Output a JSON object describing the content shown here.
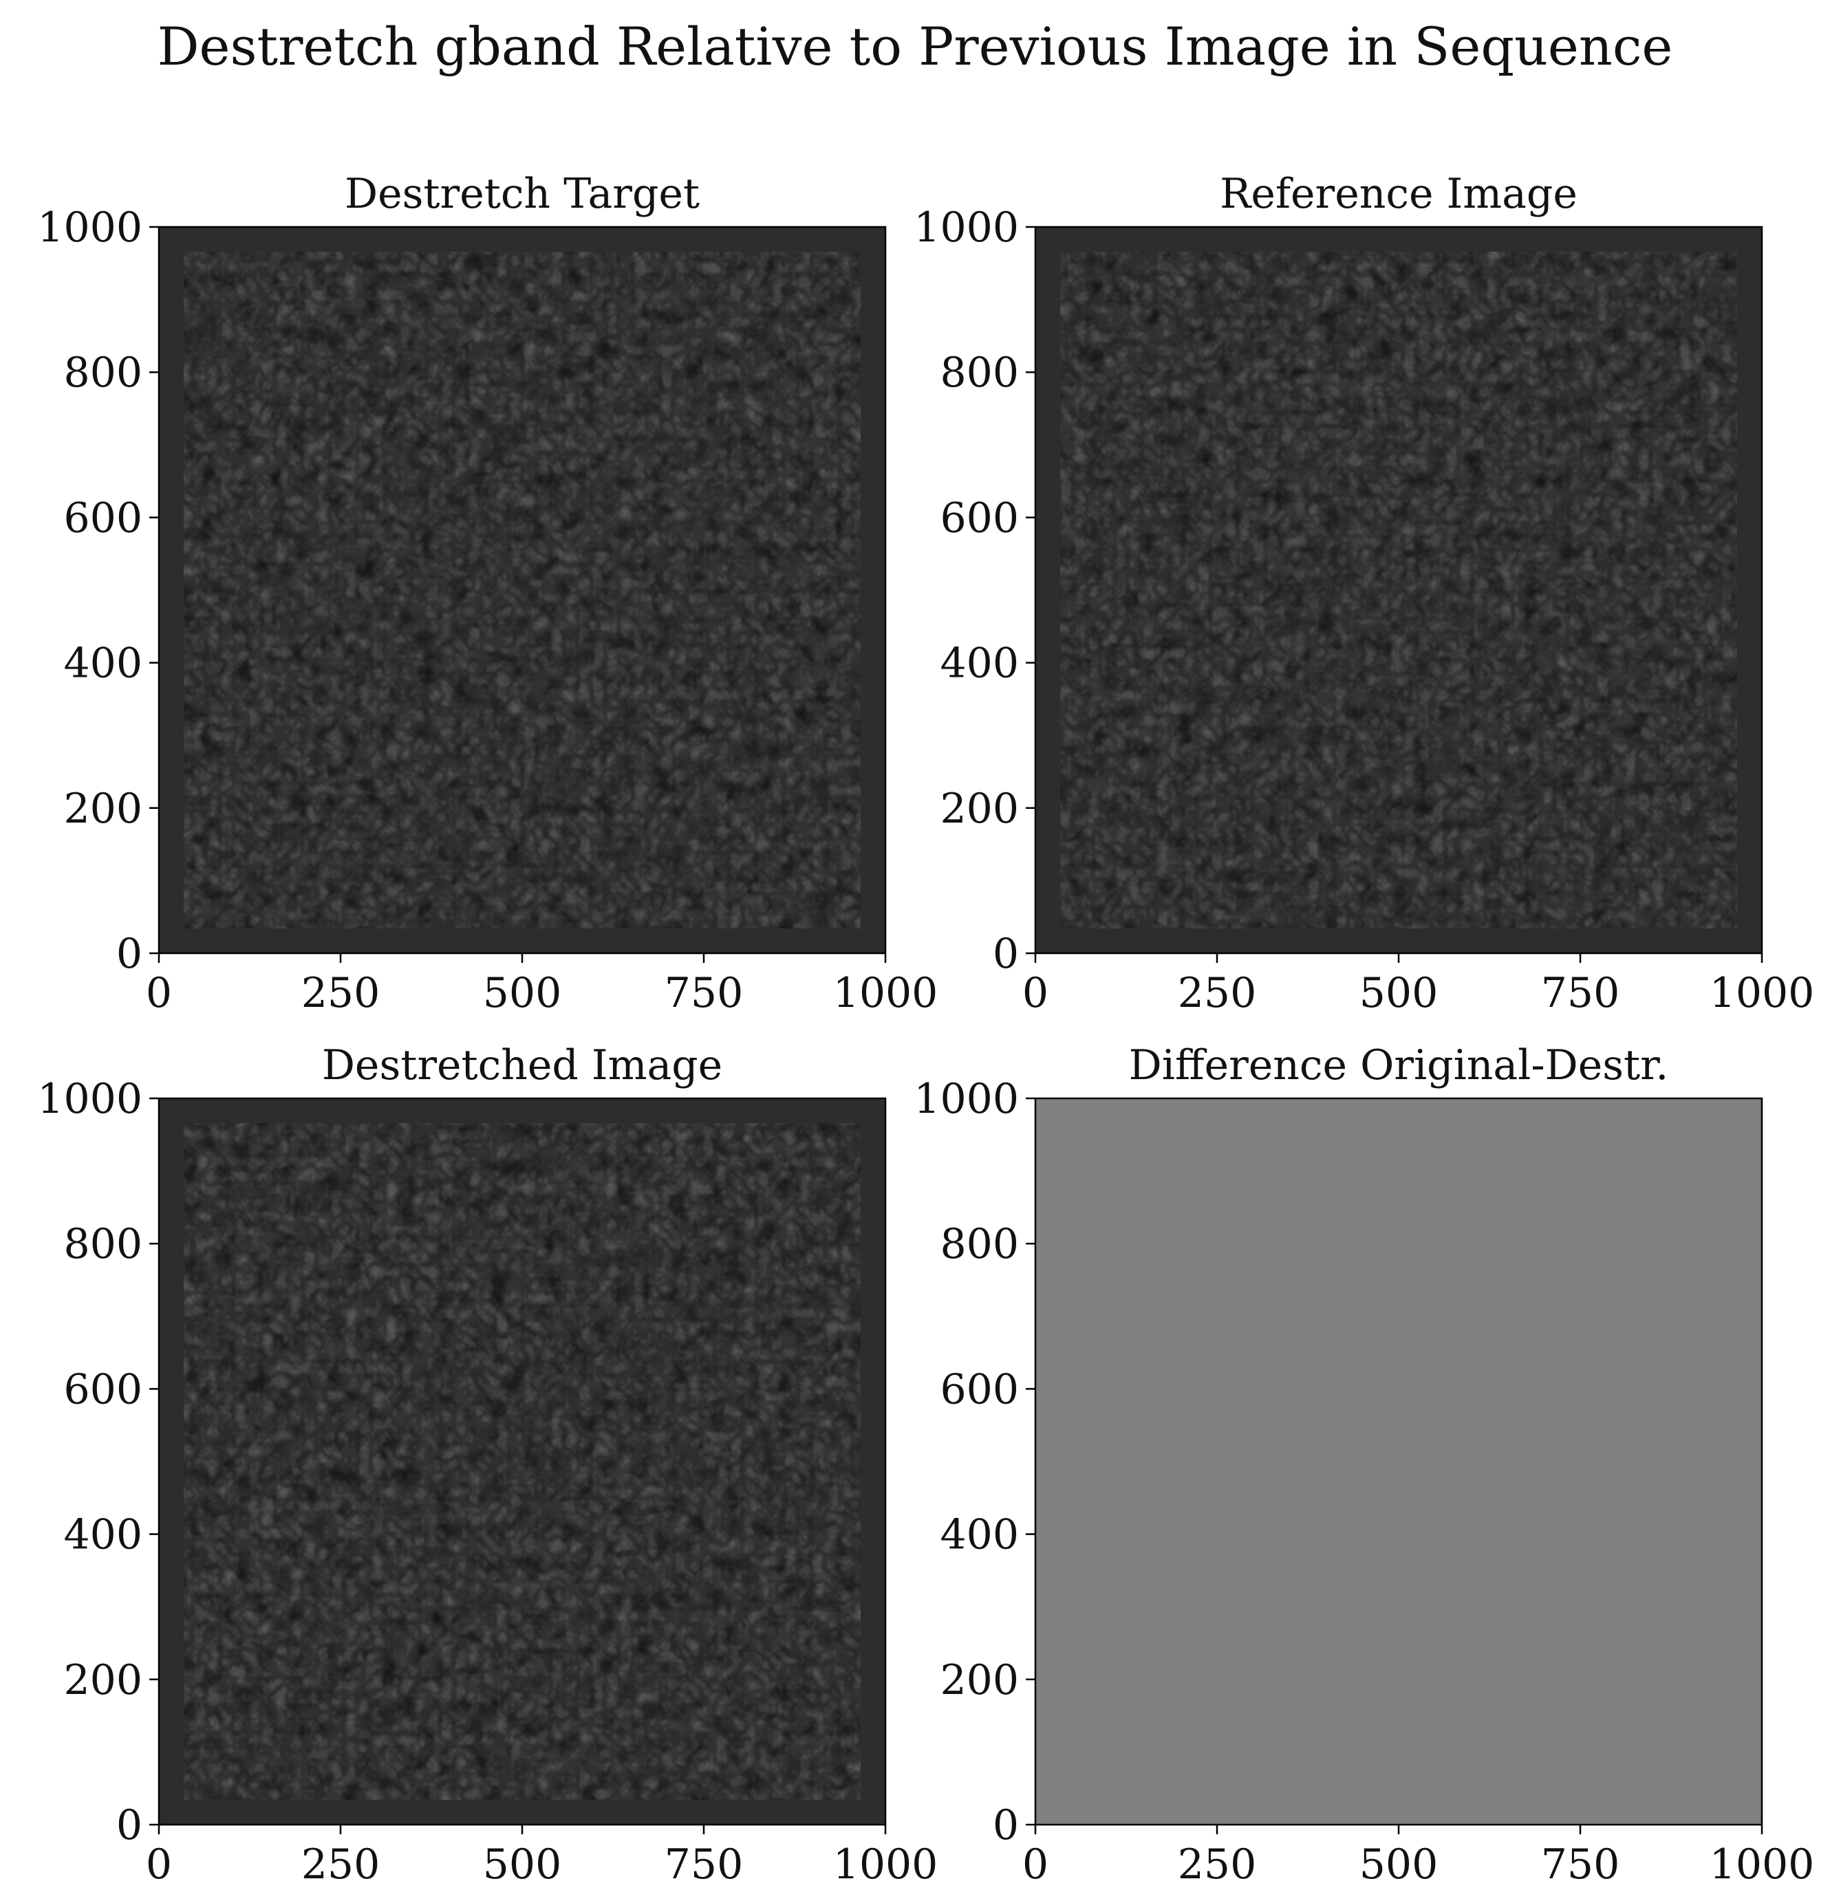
{
  "figure": {
    "suptitle": "Destretch gband Relative to Previous Image in Sequence"
  },
  "chart_data": [
    {
      "type": "heatmap",
      "title": "Destretch Target",
      "colormap": "gray",
      "content": "solar granulation",
      "xlim": [
        0,
        1000
      ],
      "ylim": [
        0,
        1000
      ],
      "xticks": [
        0,
        250,
        500,
        750,
        1000
      ],
      "yticks": [
        0,
        200,
        400,
        600,
        800,
        1000
      ],
      "xlabel": "",
      "ylabel": ""
    },
    {
      "type": "heatmap",
      "title": "Reference Image",
      "colormap": "gray",
      "content": "solar granulation",
      "xlim": [
        0,
        1000
      ],
      "ylim": [
        0,
        1000
      ],
      "xticks": [
        0,
        250,
        500,
        750,
        1000
      ],
      "yticks": [
        0,
        200,
        400,
        600,
        800,
        1000
      ],
      "xlabel": "",
      "ylabel": ""
    },
    {
      "type": "heatmap",
      "title": "Destretched Image",
      "colormap": "gray",
      "content": "solar granulation",
      "xlim": [
        0,
        1000
      ],
      "ylim": [
        0,
        1000
      ],
      "xticks": [
        0,
        250,
        500,
        750,
        1000
      ],
      "yticks": [
        0,
        200,
        400,
        600,
        800,
        1000
      ],
      "xlabel": "",
      "ylabel": ""
    },
    {
      "type": "heatmap",
      "title": "Difference Original-Destr.",
      "colormap": "gray",
      "content": "difference residuals",
      "xlim": [
        0,
        1000
      ],
      "ylim": [
        0,
        1000
      ],
      "xticks": [
        0,
        250,
        500,
        750,
        1000
      ],
      "yticks": [
        0,
        200,
        400,
        600,
        800,
        1000
      ],
      "xlabel": "",
      "ylabel": ""
    }
  ],
  "colors": {
    "frame_border": "#2d2d2d",
    "granule_base": "#3c3c3c",
    "difference_background": "#808080"
  }
}
